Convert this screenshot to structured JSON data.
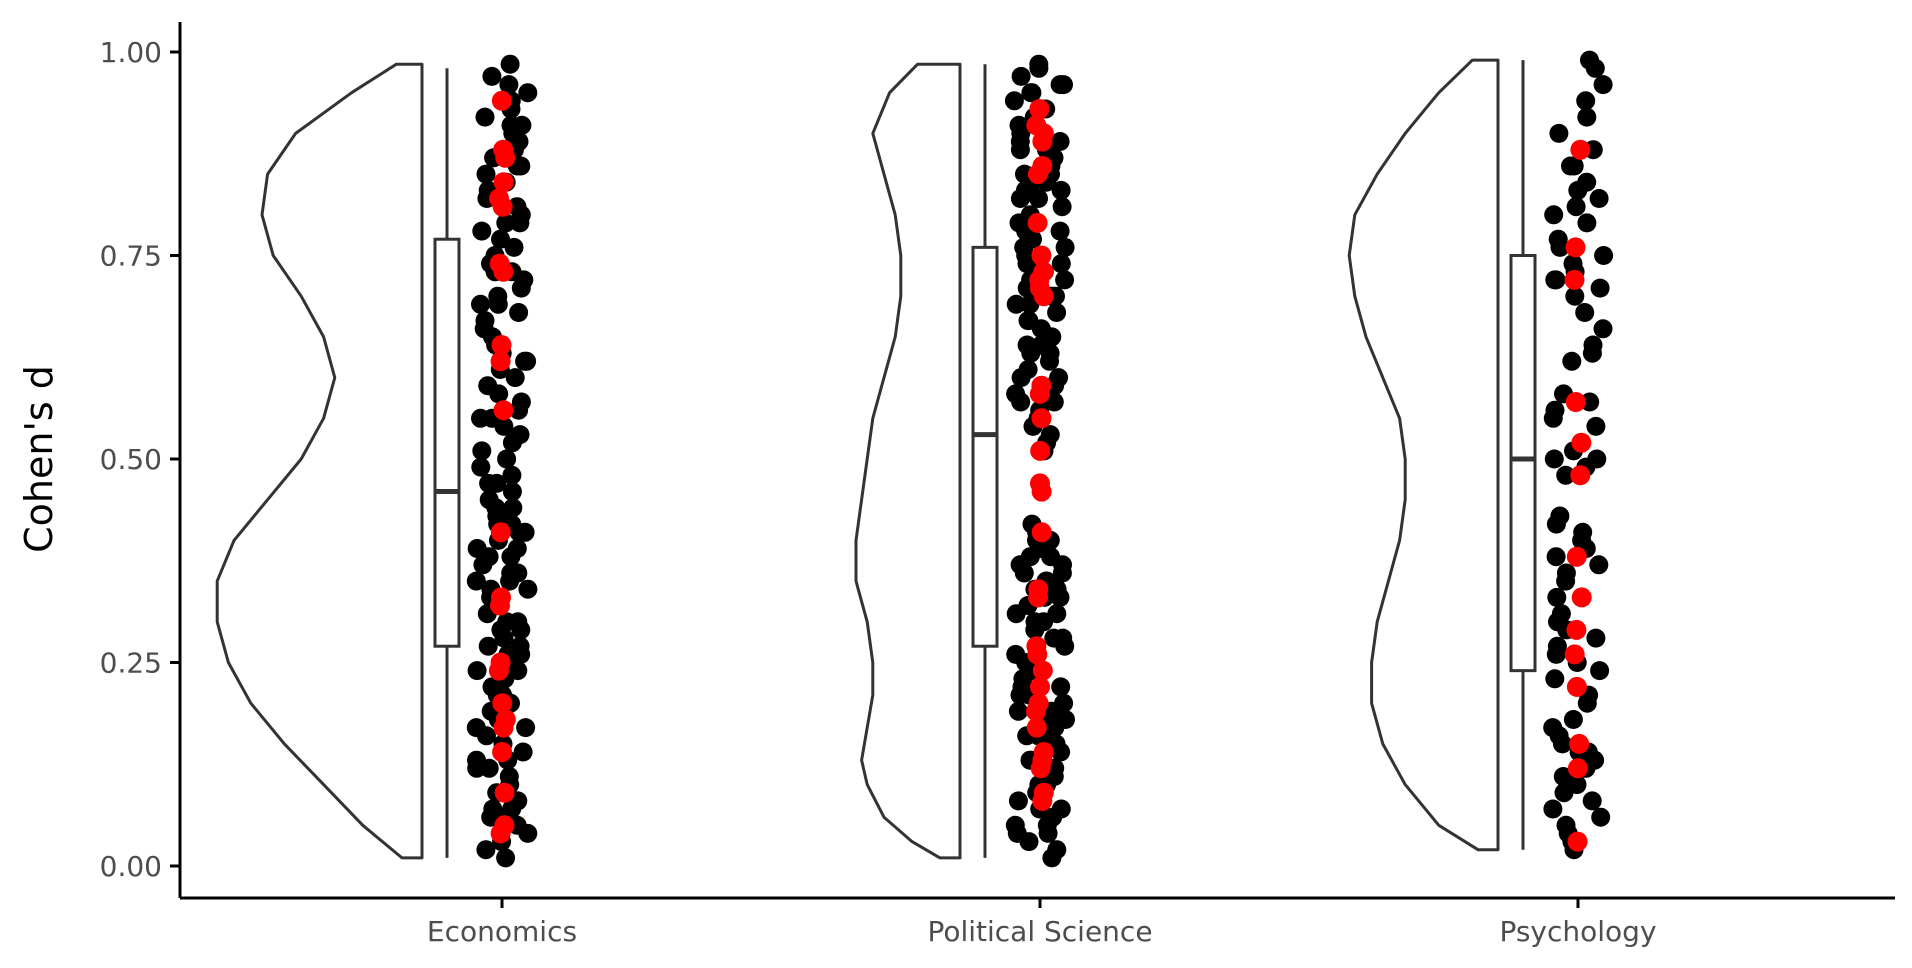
{
  "chart_data": {
    "type": "raincloud",
    "title": "",
    "xlabel": "",
    "ylabel": "Cohen's d",
    "ylim": [
      -0.04,
      1.04
    ],
    "yticks": [
      "0.00",
      "0.25",
      "0.50",
      "0.75",
      "1.00"
    ],
    "ytick_values": [
      0,
      0.25,
      0.5,
      0.75,
      1.0
    ],
    "grid": false,
    "legend": "none",
    "colors": {
      "points": "#000000",
      "highlight": "#ff0000",
      "outline": "#333333"
    },
    "categories": [
      "Economics",
      "Political Science",
      "Psychology"
    ],
    "groups": [
      {
        "name": "Economics",
        "box": {
          "min": 0.01,
          "q1": 0.27,
          "median": 0.46,
          "q3": 0.77,
          "max": 0.98
        },
        "density": [
          [
            0.01,
            0.0
          ],
          [
            0.05,
            0.07
          ],
          [
            0.1,
            0.14
          ],
          [
            0.15,
            0.21
          ],
          [
            0.2,
            0.27
          ],
          [
            0.25,
            0.31
          ],
          [
            0.3,
            0.33
          ],
          [
            0.35,
            0.33
          ],
          [
            0.4,
            0.3
          ],
          [
            0.45,
            0.24
          ],
          [
            0.5,
            0.18
          ],
          [
            0.55,
            0.14
          ],
          [
            0.6,
            0.12
          ],
          [
            0.65,
            0.14
          ],
          [
            0.7,
            0.18
          ],
          [
            0.75,
            0.23
          ],
          [
            0.8,
            0.25
          ],
          [
            0.85,
            0.24
          ],
          [
            0.9,
            0.19
          ],
          [
            0.95,
            0.09
          ],
          [
            0.985,
            0.01
          ]
        ],
        "points": [
          0.985,
          0.97,
          0.96,
          0.95,
          0.94,
          0.93,
          0.92,
          0.91,
          0.9,
          0.89,
          0.88,
          0.87,
          0.86,
          0.85,
          0.84,
          0.83,
          0.82,
          0.81,
          0.8,
          0.79,
          0.78,
          0.77,
          0.76,
          0.75,
          0.74,
          0.73,
          0.72,
          0.71,
          0.7,
          0.69,
          0.68,
          0.67,
          0.66,
          0.65,
          0.64,
          0.63,
          0.62,
          0.61,
          0.6,
          0.59,
          0.58,
          0.57,
          0.56,
          0.55,
          0.54,
          0.53,
          0.52,
          0.51,
          0.5,
          0.49,
          0.48,
          0.47,
          0.46,
          0.45,
          0.44,
          0.43,
          0.42,
          0.41,
          0.4,
          0.39,
          0.38,
          0.37,
          0.36,
          0.35,
          0.34,
          0.33,
          0.32,
          0.31,
          0.3,
          0.29,
          0.28,
          0.27,
          0.26,
          0.25,
          0.24,
          0.23,
          0.22,
          0.21,
          0.2,
          0.19,
          0.18,
          0.17,
          0.16,
          0.15,
          0.14,
          0.13,
          0.12,
          0.11,
          0.1,
          0.09,
          0.08,
          0.07,
          0.06,
          0.05,
          0.04,
          0.03,
          0.02,
          0.01,
          0.91,
          0.86,
          0.79,
          0.73,
          0.69,
          0.62,
          0.55,
          0.47,
          0.43,
          0.36,
          0.33,
          0.29,
          0.27,
          0.24,
          0.21,
          0.18,
          0.13,
          0.07,
          0.44,
          0.41,
          0.39,
          0.34,
          0.3,
          0.26,
          0.22,
          0.17,
          0.12,
          0.06,
          0.35,
          0.42,
          0.38
        ],
        "highlighted": [
          0.94,
          0.88,
          0.87,
          0.84,
          0.82,
          0.81,
          0.74,
          0.73,
          0.64,
          0.62,
          0.56,
          0.41,
          0.33,
          0.32,
          0.25,
          0.24,
          0.2,
          0.18,
          0.17,
          0.14,
          0.09,
          0.05,
          0.04
        ]
      },
      {
        "name": "Political Science",
        "box": {
          "min": 0.01,
          "q1": 0.27,
          "median": 0.53,
          "q3": 0.76,
          "max": 0.985
        },
        "density": [
          [
            0.01,
            0.0
          ],
          [
            0.03,
            0.05
          ],
          [
            0.06,
            0.1
          ],
          [
            0.1,
            0.13
          ],
          [
            0.13,
            0.14
          ],
          [
            0.17,
            0.13
          ],
          [
            0.21,
            0.12
          ],
          [
            0.25,
            0.12
          ],
          [
            0.3,
            0.13
          ],
          [
            0.35,
            0.15
          ],
          [
            0.4,
            0.15
          ],
          [
            0.45,
            0.14
          ],
          [
            0.5,
            0.13
          ],
          [
            0.55,
            0.12
          ],
          [
            0.6,
            0.1
          ],
          [
            0.65,
            0.08
          ],
          [
            0.7,
            0.07
          ],
          [
            0.75,
            0.07
          ],
          [
            0.8,
            0.08
          ],
          [
            0.85,
            0.1
          ],
          [
            0.9,
            0.12
          ],
          [
            0.95,
            0.09
          ],
          [
            0.985,
            0.04
          ]
        ],
        "points": [
          0.985,
          0.98,
          0.97,
          0.96,
          0.95,
          0.94,
          0.93,
          0.92,
          0.91,
          0.9,
          0.89,
          0.88,
          0.87,
          0.86,
          0.85,
          0.84,
          0.83,
          0.82,
          0.81,
          0.8,
          0.79,
          0.78,
          0.77,
          0.76,
          0.75,
          0.74,
          0.73,
          0.72,
          0.71,
          0.7,
          0.69,
          0.68,
          0.67,
          0.66,
          0.65,
          0.64,
          0.63,
          0.62,
          0.61,
          0.6,
          0.59,
          0.58,
          0.57,
          0.56,
          0.55,
          0.54,
          0.53,
          0.52,
          0.51,
          0.42,
          0.41,
          0.4,
          0.39,
          0.38,
          0.37,
          0.36,
          0.35,
          0.34,
          0.33,
          0.32,
          0.31,
          0.3,
          0.29,
          0.28,
          0.27,
          0.26,
          0.25,
          0.24,
          0.23,
          0.22,
          0.21,
          0.2,
          0.19,
          0.18,
          0.17,
          0.16,
          0.15,
          0.14,
          0.13,
          0.12,
          0.11,
          0.1,
          0.09,
          0.08,
          0.07,
          0.06,
          0.05,
          0.04,
          0.03,
          0.02,
          0.01,
          0.96,
          0.93,
          0.89,
          0.85,
          0.82,
          0.78,
          0.74,
          0.7,
          0.67,
          0.63,
          0.6,
          0.57,
          0.4,
          0.38,
          0.36,
          0.34,
          0.31,
          0.28,
          0.25,
          0.22,
          0.19,
          0.16,
          0.13,
          0.1,
          0.07,
          0.04,
          0.95,
          0.88,
          0.83,
          0.76,
          0.69,
          0.64,
          0.59,
          0.39,
          0.35,
          0.3,
          0.21,
          0.15,
          0.09,
          0.05,
          0.84,
          0.72,
          0.37,
          0.33,
          0.18,
          0.11
        ],
        "highlighted": [
          0.93,
          0.91,
          0.9,
          0.89,
          0.86,
          0.85,
          0.79,
          0.75,
          0.73,
          0.72,
          0.71,
          0.7,
          0.59,
          0.58,
          0.55,
          0.51,
          0.47,
          0.46,
          0.41,
          0.34,
          0.33,
          0.27,
          0.26,
          0.24,
          0.22,
          0.2,
          0.19,
          0.17,
          0.14,
          0.13,
          0.12,
          0.09,
          0.08
        ]
      },
      {
        "name": "Psychology",
        "box": {
          "min": 0.02,
          "q1": 0.24,
          "median": 0.5,
          "q3": 0.75,
          "max": 0.99
        },
        "density": [
          [
            0.02,
            0.0
          ],
          [
            0.05,
            0.07
          ],
          [
            0.1,
            0.13
          ],
          [
            0.15,
            0.17
          ],
          [
            0.2,
            0.19
          ],
          [
            0.25,
            0.19
          ],
          [
            0.3,
            0.18
          ],
          [
            0.35,
            0.16
          ],
          [
            0.4,
            0.14
          ],
          [
            0.45,
            0.13
          ],
          [
            0.5,
            0.13
          ],
          [
            0.55,
            0.14
          ],
          [
            0.6,
            0.17
          ],
          [
            0.65,
            0.2
          ],
          [
            0.7,
            0.22
          ],
          [
            0.75,
            0.23
          ],
          [
            0.8,
            0.22
          ],
          [
            0.85,
            0.18
          ],
          [
            0.9,
            0.13
          ],
          [
            0.95,
            0.07
          ],
          [
            0.99,
            0.01
          ]
        ],
        "points": [
          0.99,
          0.98,
          0.96,
          0.94,
          0.92,
          0.9,
          0.88,
          0.86,
          0.84,
          0.83,
          0.82,
          0.81,
          0.8,
          0.79,
          0.77,
          0.76,
          0.75,
          0.74,
          0.73,
          0.72,
          0.71,
          0.7,
          0.68,
          0.66,
          0.64,
          0.63,
          0.62,
          0.58,
          0.57,
          0.56,
          0.55,
          0.54,
          0.51,
          0.5,
          0.49,
          0.48,
          0.43,
          0.42,
          0.41,
          0.4,
          0.39,
          0.38,
          0.36,
          0.35,
          0.33,
          0.31,
          0.3,
          0.29,
          0.28,
          0.27,
          0.25,
          0.24,
          0.23,
          0.21,
          0.2,
          0.18,
          0.17,
          0.16,
          0.15,
          0.14,
          0.13,
          0.12,
          0.11,
          0.1,
          0.09,
          0.08,
          0.07,
          0.05,
          0.04,
          0.03,
          0.02,
          0.86,
          0.72,
          0.5,
          0.37,
          0.26,
          0.14,
          0.06
        ],
        "highlighted": [
          0.88,
          0.76,
          0.72,
          0.57,
          0.52,
          0.48,
          0.38,
          0.33,
          0.29,
          0.26,
          0.22,
          0.15,
          0.12,
          0.03
        ]
      }
    ]
  }
}
